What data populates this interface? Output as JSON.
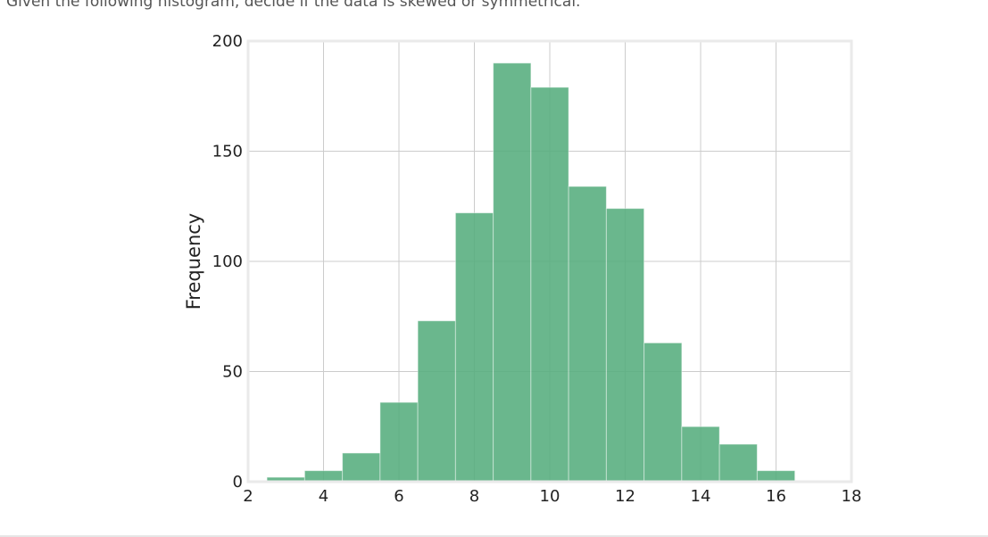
{
  "question": "Given the following histogram, decide if the data is skewed or symmetrical.",
  "chart_data": {
    "type": "bar",
    "histogram": true,
    "bins": [
      {
        "x0": 2.5,
        "x1": 3.5,
        "count": 2
      },
      {
        "x0": 3.5,
        "x1": 4.5,
        "count": 5
      },
      {
        "x0": 4.5,
        "x1": 5.5,
        "count": 13
      },
      {
        "x0": 5.5,
        "x1": 6.5,
        "count": 36
      },
      {
        "x0": 6.5,
        "x1": 7.5,
        "count": 73
      },
      {
        "x0": 7.5,
        "x1": 8.5,
        "count": 122
      },
      {
        "x0": 8.5,
        "x1": 9.5,
        "count": 190
      },
      {
        "x0": 9.5,
        "x1": 10.5,
        "count": 179
      },
      {
        "x0": 10.5,
        "x1": 11.5,
        "count": 134
      },
      {
        "x0": 11.5,
        "x1": 12.5,
        "count": 124
      },
      {
        "x0": 12.5,
        "x1": 13.5,
        "count": 63
      },
      {
        "x0": 13.5,
        "x1": 14.5,
        "count": 25
      },
      {
        "x0": 14.5,
        "x1": 15.5,
        "count": 17
      },
      {
        "x0": 15.5,
        "x1": 16.5,
        "count": 5
      }
    ],
    "xlim": [
      2,
      18
    ],
    "ylim": [
      0,
      200
    ],
    "xticks": [
      "2",
      "4",
      "6",
      "8",
      "10",
      "12",
      "14",
      "16",
      "18"
    ],
    "yticks": [
      "0",
      "50",
      "100",
      "150",
      "200"
    ],
    "ylabel": "Frequency",
    "xlabel": "",
    "grid": true,
    "bar_color": "#55ad7d",
    "grid_color": "#cccccc",
    "frame_color": "#eaeaea"
  }
}
